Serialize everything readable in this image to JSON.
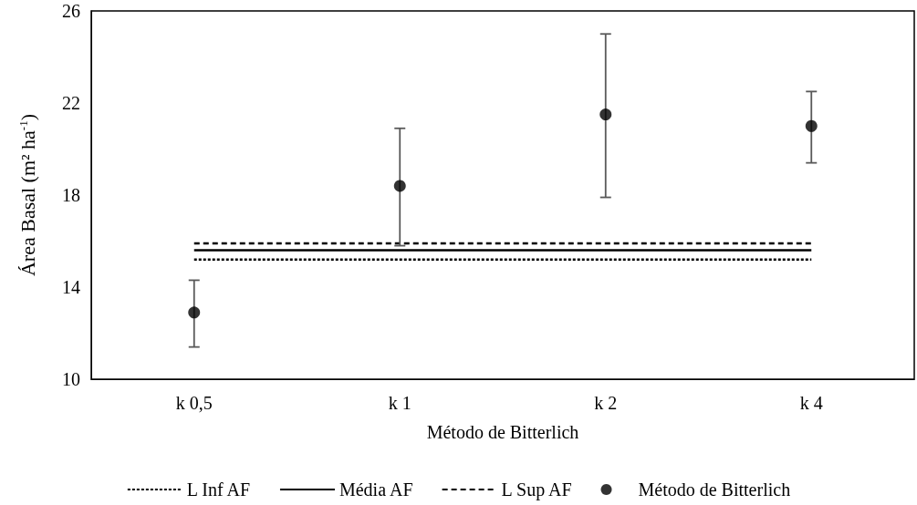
{
  "chart_data": {
    "type": "scatter",
    "xlabel": "Método de Bitterlich",
    "ylabel": "Área Basal (m² ha$^{-1}$)",
    "categories": [
      "k 0,5",
      "k 1",
      "k 2",
      "k 4"
    ],
    "ylim": [
      10,
      26
    ],
    "yticks": [
      10,
      14,
      18,
      22,
      26
    ],
    "grid": false,
    "legend": "bottom",
    "series": [
      {
        "name": "L Inf AF",
        "type": "line",
        "color": "#000000",
        "line_style": "dotted",
        "marker": "none",
        "values": [
          15.2,
          15.2,
          15.2,
          15.2
        ]
      },
      {
        "name": "Média AF",
        "type": "line",
        "color": "#000000",
        "line_style": "solid",
        "marker": "none",
        "values": [
          15.6,
          15.6,
          15.6,
          15.6
        ]
      },
      {
        "name": "L Sup AF",
        "type": "line",
        "color": "#000000",
        "line_style": "dashed",
        "marker": "none",
        "values": [
          15.9,
          15.9,
          15.9,
          15.9
        ]
      },
      {
        "name": "Método de Bitterlich",
        "color": "#000000",
        "marker": "circle",
        "values": [
          12.9,
          18.4,
          21.5,
          21.0
        ],
        "errors": [
          [
            11.4,
            14.3
          ],
          [
            15.8,
            20.9
          ],
          [
            17.9,
            25.0
          ],
          [
            19.4,
            22.5
          ]
        ]
      }
    ]
  }
}
